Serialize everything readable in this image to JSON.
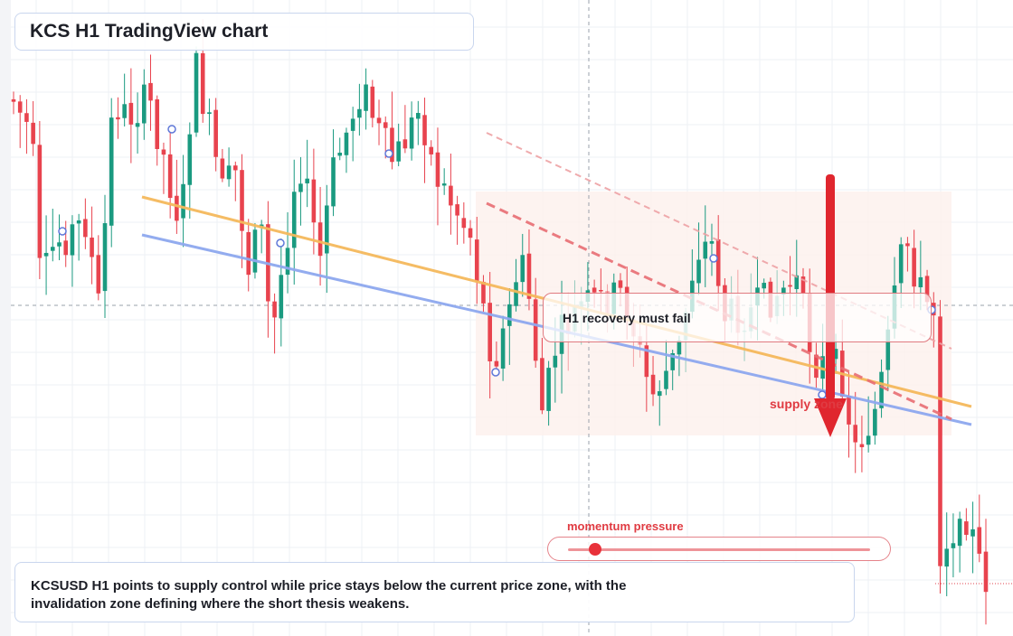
{
  "title": "KCS H1 TradingView chart",
  "callout": {
    "text": "H1 recovery must fail"
  },
  "supply_label": "supply zone",
  "momentum": {
    "label": "momentum pressure",
    "level": 0.09
  },
  "description": {
    "line1": "KCSUSD H1 points to supply control while price stays below the current price zone, with the",
    "line2": "invalidation zone defining where the short thesis weakens."
  },
  "colors": {
    "up": "#1a9a80",
    "down": "#e8434e",
    "accent_red": "#e03b42",
    "orange_line": "#f5b95c",
    "blue_line": "#8ea8ef"
  },
  "chart_data": {
    "type": "candlestick",
    "symbol": "KCSUSD",
    "timeframe": "H1",
    "grid": true,
    "candle_count": 150
  }
}
